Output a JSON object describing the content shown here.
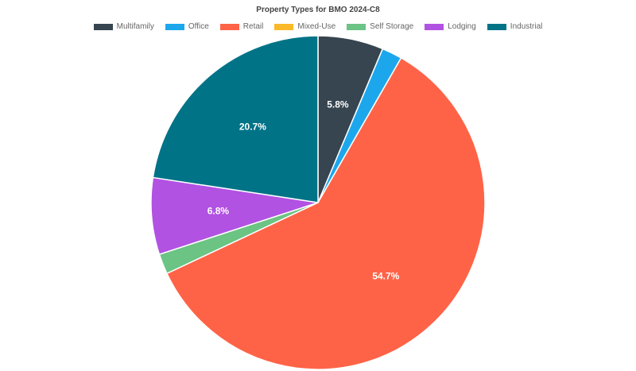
{
  "chart_data": {
    "type": "pie",
    "title": "Property Types for BMO 2024-C8",
    "legend_position": "top",
    "categories": [
      "Multifamily",
      "Office",
      "Retail",
      "Mixed-Use",
      "Self Storage",
      "Lodging",
      "Industrial"
    ],
    "values": [
      5.8,
      1.8,
      54.7,
      0.0,
      1.8,
      6.8,
      20.7
    ],
    "colors": [
      "#36454f",
      "#1ca7ec",
      "#ff6347",
      "#fbb829",
      "#6bc384",
      "#b152e2",
      "#007387"
    ],
    "data_labels": [
      "5.8%",
      "",
      "54.7%",
      "",
      "",
      "6.8%",
      "20.7%"
    ]
  }
}
